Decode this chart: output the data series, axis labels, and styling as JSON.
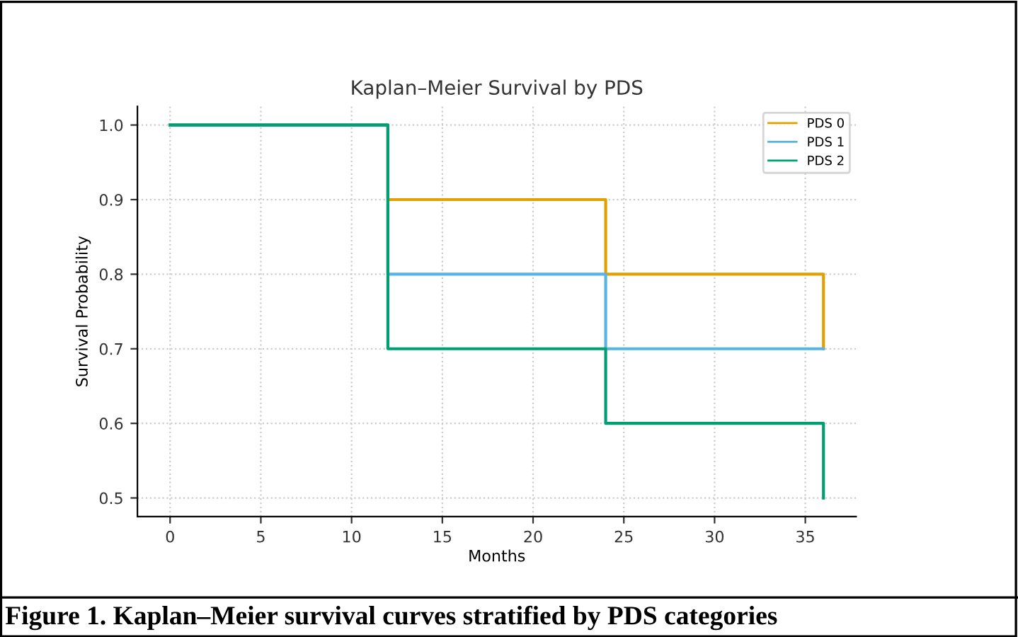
{
  "chart_data": {
    "type": "step",
    "title": "Kaplan–Meier Survival by PDS",
    "xlabel": "Months",
    "ylabel": "Survival Probability",
    "x": [
      0,
      12,
      24,
      36
    ],
    "series": [
      {
        "name": "PDS 0",
        "color": "#e69f00",
        "values": [
          1.0,
          0.9,
          0.8,
          0.7
        ]
      },
      {
        "name": "PDS 1",
        "color": "#56b4e9",
        "values": [
          1.0,
          0.8,
          0.7,
          0.7
        ]
      },
      {
        "name": "PDS 2",
        "color": "#009e73",
        "values": [
          1.0,
          0.7,
          0.6,
          0.5
        ]
      }
    ],
    "xlim": [
      -1.8,
      37.8
    ],
    "xticks": [
      0,
      5,
      10,
      15,
      20,
      25,
      30,
      35
    ],
    "ylim": [
      0.475,
      1.025
    ],
    "yticks": [
      0.5,
      0.6,
      0.7,
      0.8,
      0.9,
      {
        "value": 1,
        "label": "1.0"
      }
    ],
    "grid": true,
    "legend": "top right",
    "annotations": [
      "Figure 1. Kaplan–Meier survival curves stratified by PDS categories"
    ]
  }
}
